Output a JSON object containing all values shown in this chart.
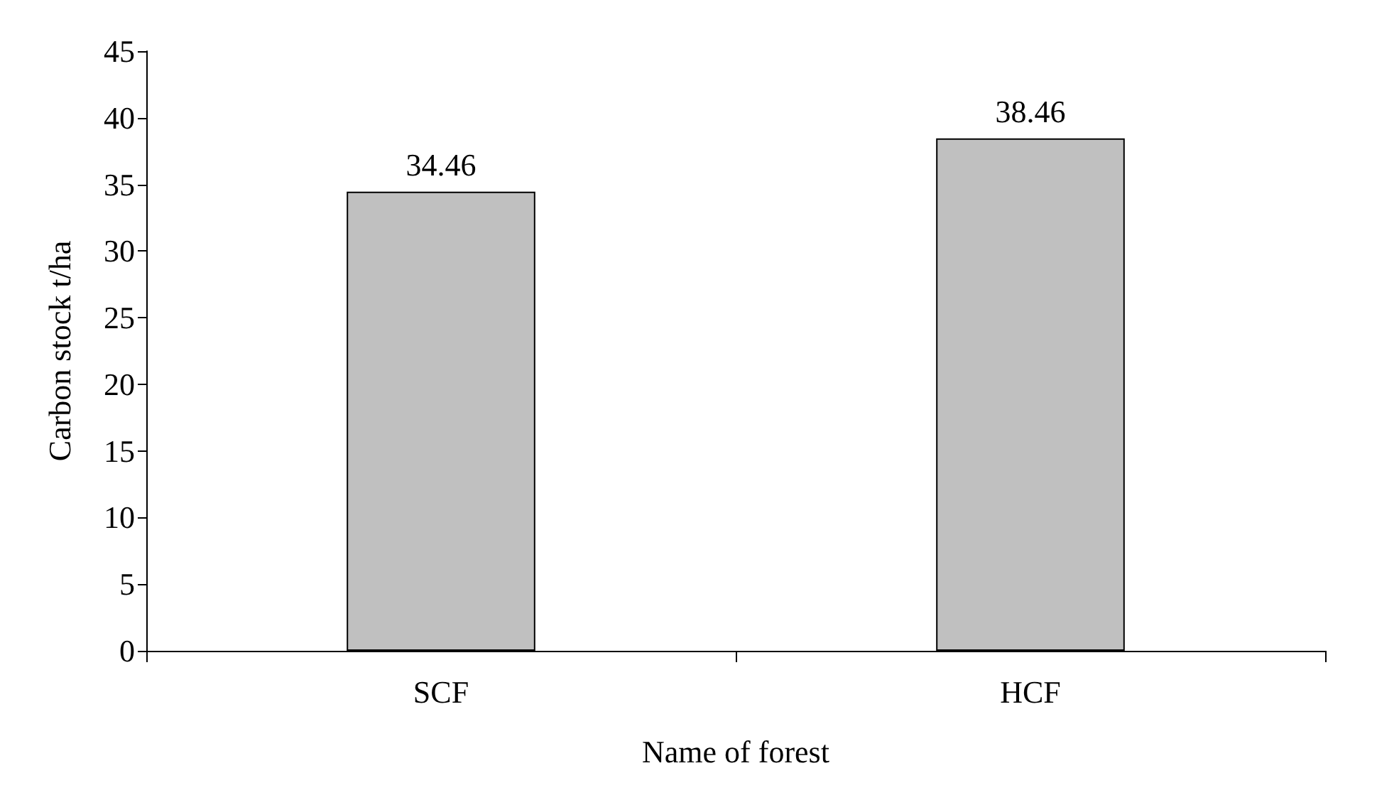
{
  "chart_data": {
    "type": "bar",
    "xlabel": "Name of forest",
    "ylabel": "Carbon stock t/ha",
    "categories": [
      "SCF",
      "HCF"
    ],
    "values": [
      34.46,
      38.46
    ],
    "color": "#c0c0c0",
    "ylim": [
      0,
      45
    ],
    "yticks": [
      0,
      5,
      10,
      15,
      20,
      25,
      30,
      35,
      40,
      45
    ],
    "data_labels": true
  }
}
